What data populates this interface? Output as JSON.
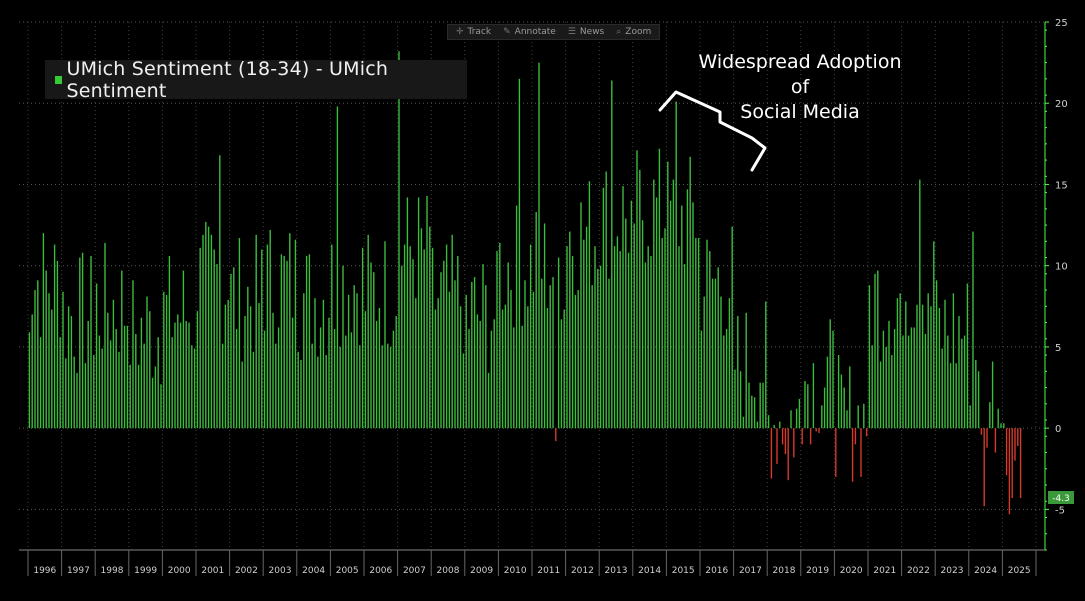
{
  "toolbar": {
    "track_label": "Track",
    "annotate_label": "Annotate",
    "news_label": "News",
    "zoom_label": "Zoom"
  },
  "legend": {
    "label": "UMich Sentiment (18-34) - UMich Sentiment"
  },
  "annotation": {
    "line1": "Widespread Adoption of",
    "line2": "Social Media"
  },
  "colors": {
    "positive": "#3dbb3d",
    "negative": "#d43a2a",
    "accent": "#4aff4a",
    "background": "#000000"
  },
  "chart_data": {
    "type": "bar",
    "title": "UMich Sentiment (18-34) - UMich Sentiment",
    "frequency": "monthly",
    "start": "1996-01",
    "end": "2025-07",
    "ylim": [
      -7.5,
      25
    ],
    "y_ticks": [
      25,
      20,
      15,
      10,
      5,
      0,
      -5
    ],
    "x_labels": [
      "1996",
      "1997",
      "1998",
      "1999",
      "2000",
      "2001",
      "2002",
      "2003",
      "2004",
      "2005",
      "2006",
      "2007",
      "2008",
      "2009",
      "2010",
      "2011",
      "2012",
      "2013",
      "2014",
      "2015",
      "2016",
      "2017",
      "2018",
      "2019",
      "2020",
      "2021",
      "2022",
      "2023",
      "2024",
      "2025"
    ],
    "last_value": -4.3,
    "last_value_label": "-4.3",
    "annual_peaks": {
      "2001": 16.8,
      "2005": 19.8,
      "2007": 23.2,
      "2010": 21.5,
      "2011": 22.5,
      "2013": 21.4,
      "2015": 20.1,
      "2022": 15.3,
      "2024": 12.1
    },
    "annual_lows": {
      "2011": -0.8,
      "2018": -3.2,
      "2020": -3.0,
      "2024": -4.8,
      "2025": -4.3
    },
    "annual_avg": {
      "1996": 9,
      "1997": 7,
      "1998": 7.5,
      "1999": 6,
      "2000": 7,
      "2001": 9,
      "2002": 8,
      "2003": 9,
      "2004": 8,
      "2005": 9,
      "2006": 8.5,
      "2007": 11,
      "2008": 8,
      "2009": 7,
      "2010": 10,
      "2011": 10,
      "2012": 12,
      "2013": 13,
      "2014": 13.5,
      "2015": 13,
      "2016": 9,
      "2017": 4,
      "2018": 0.5,
      "2019": 3,
      "2020": 0.5,
      "2021": 8,
      "2022": 9,
      "2023": 6,
      "2024": 2,
      "2025": -1.5
    }
  }
}
